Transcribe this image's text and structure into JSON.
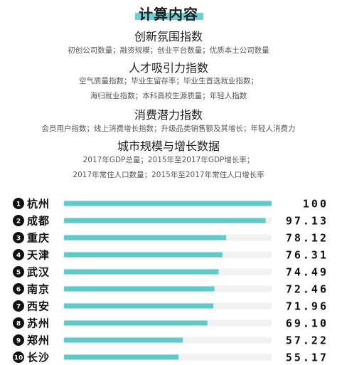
{
  "header": {
    "title": "计算内容",
    "sections": [
      {
        "title": "创新氛围指数",
        "lines": [
          "初创公司数量；融资规模；创业平台数量；优质本土公司数量"
        ]
      },
      {
        "title": "人才吸引力指数",
        "lines": [
          "空气质量指数；毕业生留存率；毕业生首选就业指数；",
          "海归就业指数；本科高校生源质量；年轻人指数"
        ]
      },
      {
        "title": "消费潜力指数",
        "lines": [
          "会员用户指数；线上消费增长指数；升级品类销售额及其增长；年轻人消费力"
        ]
      },
      {
        "title": "城市规模与增长数据",
        "lines": [
          "2017年GDP总量；2015年至2017年GDP增长率；",
          "2017年常住人口数量；2015年至2017年常住人口增长率"
        ]
      }
    ]
  },
  "chart_data": {
    "type": "bar",
    "orientation": "horizontal",
    "categories": [
      "杭州",
      "成都",
      "重庆",
      "天津",
      "武汉",
      "南京",
      "西安",
      "苏州",
      "郑州",
      "长沙"
    ],
    "ranks": [
      "1",
      "2",
      "3",
      "4",
      "5",
      "6",
      "7",
      "8",
      "9",
      "10"
    ],
    "values": [
      100,
      97.13,
      78.12,
      76.31,
      74.49,
      72.46,
      71.96,
      69.1,
      57.22,
      55.17
    ],
    "value_labels": [
      "100",
      "97.13",
      "78.12",
      "76.31",
      "74.49",
      "72.46",
      "71.96",
      "69.10",
      "57.22",
      "55.17"
    ],
    "xlim": [
      0,
      100
    ],
    "title": "",
    "xlabel": "",
    "ylabel": "",
    "colors": {
      "bar": "#5fc9cc",
      "track": "#f1f1f1",
      "badge": "#111111"
    }
  }
}
